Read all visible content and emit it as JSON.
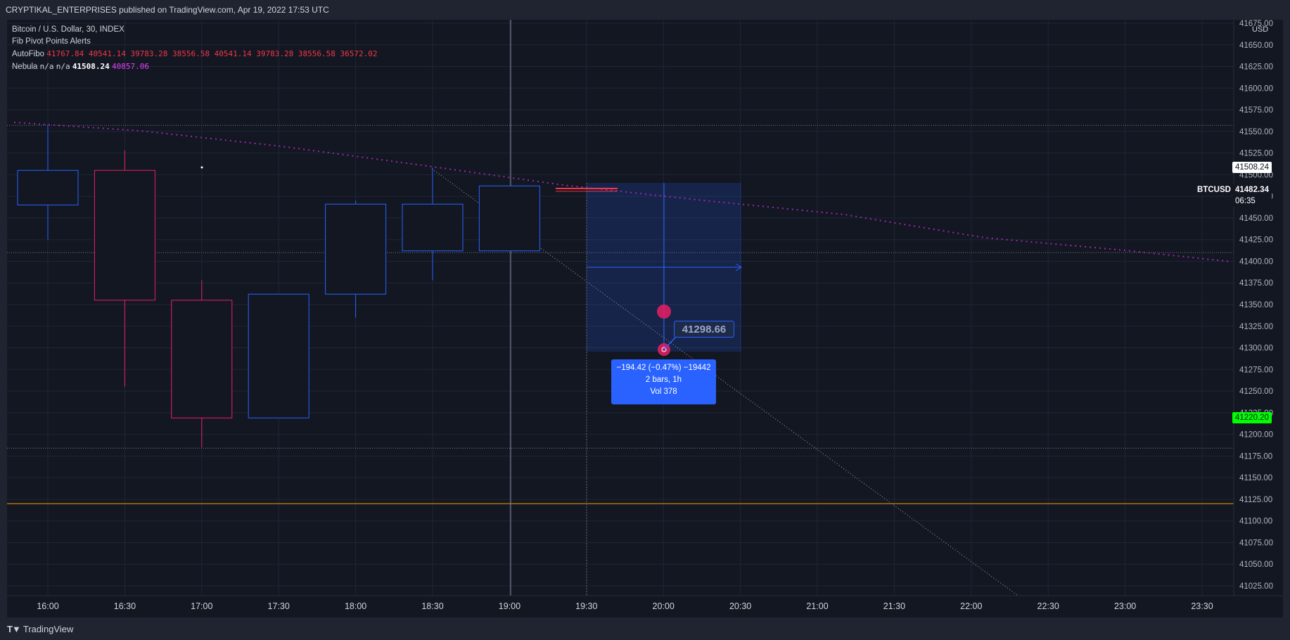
{
  "header": {
    "title": "CRYPTIKAL_ENTERPRISES published on TradingView.com, Apr 19, 2022 17:53 UTC"
  },
  "legend": {
    "symbol_line": "Bitcoin / U.S. Dollar, 30, INDEX",
    "indicator_1": "Fib Pivot Points Alerts",
    "autofibo": {
      "label": "AutoFibo",
      "values": [
        "41767.84",
        "40541.14",
        "39783.28",
        "38556.58",
        "40541.14",
        "39783.28",
        "38556.58",
        "36572.02"
      ],
      "color": "#f23645"
    },
    "nebula": {
      "label": "Nebula",
      "na_1": "n/a",
      "na_2": "n/a",
      "value_white": "41508.24",
      "value_magenta": "40857.06",
      "magenta_color": "#e040fb"
    }
  },
  "price_axis": {
    "currency": "USD",
    "ticks": [
      "41675.00",
      "41650.00",
      "41625.00",
      "41600.00",
      "41575.00",
      "41550.00",
      "41525.00",
      "41500.00",
      "41475.00",
      "41450.00",
      "41425.00",
      "41400.00",
      "41375.00",
      "41350.00",
      "41325.00",
      "41300.00",
      "41275.00",
      "41250.00",
      "41225.00",
      "41200.00",
      "41175.00",
      "41150.00",
      "41125.00",
      "41100.00",
      "41075.00",
      "41050.00",
      "41025.00"
    ]
  },
  "time_axis": {
    "ticks": [
      "16:00",
      "16:30",
      "17:00",
      "17:30",
      "18:00",
      "18:30",
      "19:00",
      "19:30",
      "20:00",
      "20:30",
      "21:00",
      "21:30",
      "22:00",
      "22:30",
      "23:00",
      "23:30"
    ]
  },
  "tags": {
    "nebula_price": "41508.24",
    "symbol": "BTCUSD",
    "last_price": "41482.34",
    "countdown": "06:35",
    "green_price": "41220.20"
  },
  "measure": {
    "price_label": "41298.66",
    "line1": "−194.42 (−0.47%) −19442",
    "line2": "2 bars, 1h",
    "line3": "Vol 378"
  },
  "chart_data": {
    "type": "candlestick",
    "interval": "30",
    "symbol": "Bitcoin / U.S. Dollar",
    "ylim": [
      41010,
      41680
    ],
    "x_categories": [
      "16:00",
      "16:30",
      "17:00",
      "17:30",
      "18:00",
      "18:30",
      "19:00"
    ],
    "candles": [
      {
        "time": "16:00",
        "open": 41465,
        "high": 41557,
        "low": 41425,
        "close": 41505
      },
      {
        "time": "16:30",
        "open": 41505,
        "high": 41528,
        "low": 41255,
        "close": 41355
      },
      {
        "time": "17:00",
        "open": 41355,
        "high": 41378,
        "low": 41185,
        "close": 41219
      },
      {
        "time": "17:30",
        "open": 41219,
        "high": 41362,
        "low": 41219,
        "close": 41362
      },
      {
        "time": "18:00",
        "open": 41362,
        "high": 41470,
        "low": 41335,
        "close": 41466
      },
      {
        "time": "18:30",
        "open": 41412,
        "high": 41508,
        "low": 41378,
        "close": 41466
      },
      {
        "time": "19:00",
        "open": 41412,
        "high": 41487,
        "low": 41412,
        "close": 41487
      }
    ],
    "colors": {
      "up": "#2962ff",
      "down": "#e91e63"
    },
    "horizontal_levels": [
      {
        "price": 41557,
        "style": "dotted",
        "color": "#787b86"
      },
      {
        "price": 41410,
        "style": "dotted",
        "color": "#787b86"
      },
      {
        "price": 41184,
        "style": "dotted",
        "color": "#787b86"
      },
      {
        "price": 41120,
        "style": "solid",
        "color": "#ff9800"
      }
    ]
  },
  "colors": {
    "background": "#131722",
    "grid": "#1f2a3a",
    "accent": "#2962ff",
    "down": "#e91e63",
    "up": "#2962ff"
  }
}
